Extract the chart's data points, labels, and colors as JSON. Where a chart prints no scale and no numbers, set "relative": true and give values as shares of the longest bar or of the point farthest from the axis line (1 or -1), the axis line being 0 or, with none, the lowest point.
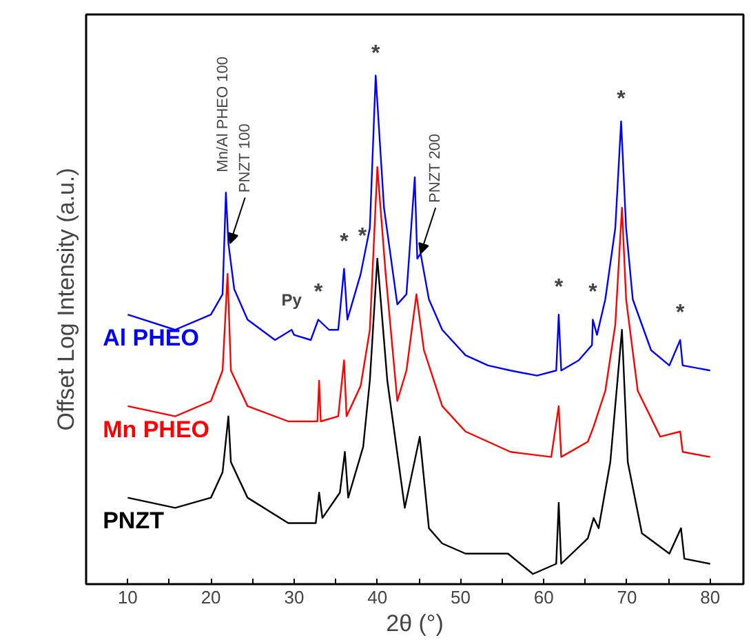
{
  "chart_data": {
    "type": "line",
    "relative": true,
    "xlabel": "2θ (°)",
    "ylabel": "Offset Log Intensity (a.u.)",
    "xlim": [
      5,
      84
    ],
    "xticks": [
      10,
      {
        "value": 15,
        "label": null
      },
      20,
      {
        "value": 25,
        "label": null
      },
      30,
      {
        "value": 35,
        "label": null
      },
      40,
      {
        "value": 45,
        "label": null
      },
      50,
      {
        "value": 55,
        "label": null
      },
      60,
      {
        "value": 65,
        "label": null
      },
      70,
      {
        "value": 75,
        "label": null
      },
      80
    ],
    "grid": false,
    "legend": false,
    "marker": "none",
    "line_style": "solid",
    "series": [
      {
        "name": "Al PHEO",
        "color": "#0000ff",
        "x": [
          10,
          15.7,
          20,
          21.4,
          21.8,
          22.1,
          22.8,
          24.4,
          27.7,
          29.7,
          30,
          32,
          32.9,
          34.2,
          35.3,
          36,
          36.4,
          38,
          39.1,
          39.8,
          40.8,
          42.4,
          43.5,
          44.5,
          44.8,
          45.2,
          46.2,
          47.8,
          50.6,
          53.3,
          56,
          59.2,
          61.5,
          61.8,
          62.1,
          64.2,
          65.8,
          65.9,
          66.4,
          67.4,
          68.6,
          69.3,
          69.9,
          70.7,
          72.9,
          75.1,
          76.4,
          76.7,
          80
        ],
        "values": [
          0.53,
          0.5,
          0.53,
          0.57,
          0.77,
          0.67,
          0.58,
          0.52,
          0.48,
          0.5,
          0.49,
          0.48,
          0.52,
          0.5,
          0.5,
          0.62,
          0.52,
          0.61,
          0.7,
          1.0,
          0.74,
          0.55,
          0.57,
          0.8,
          0.64,
          0.65,
          0.56,
          0.5,
          0.45,
          0.43,
          0.42,
          0.41,
          0.42,
          0.53,
          0.42,
          0.44,
          0.47,
          0.52,
          0.49,
          0.56,
          0.7,
          0.91,
          0.7,
          0.56,
          0.46,
          0.43,
          0.48,
          0.43,
          0.42
        ]
      },
      {
        "name": "Mn PHEO",
        "color": "#ff0000",
        "x": [
          10,
          15.7,
          20,
          21.4,
          22.0,
          22.4,
          24.4,
          29.3,
          32.8,
          33.0,
          33.2,
          35.3,
          36.0,
          36.3,
          38,
          39.1,
          40.0,
          41.0,
          42.4,
          43.5,
          44.7,
          45.6,
          47.8,
          50.6,
          56,
          60.9,
          61.8,
          62.1,
          65.3,
          66.0,
          67.4,
          68.6,
          69.4,
          69.9,
          71.3,
          74,
          76.4,
          76.7,
          80
        ],
        "values": [
          0.35,
          0.33,
          0.36,
          0.42,
          0.61,
          0.42,
          0.35,
          0.32,
          0.32,
          0.4,
          0.32,
          0.33,
          0.44,
          0.33,
          0.39,
          0.5,
          0.82,
          0.61,
          0.36,
          0.42,
          0.57,
          0.46,
          0.35,
          0.3,
          0.26,
          0.25,
          0.35,
          0.25,
          0.28,
          0.31,
          0.38,
          0.51,
          0.74,
          0.56,
          0.38,
          0.29,
          0.3,
          0.26,
          0.25
        ]
      },
      {
        "name": "PNZT",
        "color": "#000000",
        "x": [
          10,
          15.7,
          20,
          21.4,
          22.1,
          22.4,
          24.4,
          29.3,
          32.6,
          33.0,
          33.4,
          35.5,
          36.1,
          36.5,
          38.3,
          39.1,
          40.0,
          41.2,
          43.3,
          45.1,
          46.2,
          47.8,
          50.6,
          55.7,
          58.7,
          61.5,
          61.8,
          62.1,
          65.3,
          66.0,
          66.6,
          68.0,
          69.4,
          70.1,
          71.8,
          75.1,
          76.5,
          76.9,
          80
        ],
        "values": [
          0.17,
          0.15,
          0.17,
          0.22,
          0.33,
          0.24,
          0.17,
          0.12,
          0.12,
          0.18,
          0.13,
          0.18,
          0.26,
          0.17,
          0.27,
          0.4,
          0.64,
          0.4,
          0.15,
          0.29,
          0.11,
          0.08,
          0.06,
          0.06,
          0.02,
          0.04,
          0.16,
          0.04,
          0.09,
          0.13,
          0.11,
          0.24,
          0.5,
          0.24,
          0.1,
          0.06,
          0.11,
          0.05,
          0.04
        ]
      }
    ],
    "annotations": [
      "Mn/Al PHEO 100",
      "PNZT 100",
      "PNZT 200",
      "Py",
      "*",
      "*",
      "*",
      "*",
      "*",
      "*",
      "*",
      "*"
    ]
  }
}
